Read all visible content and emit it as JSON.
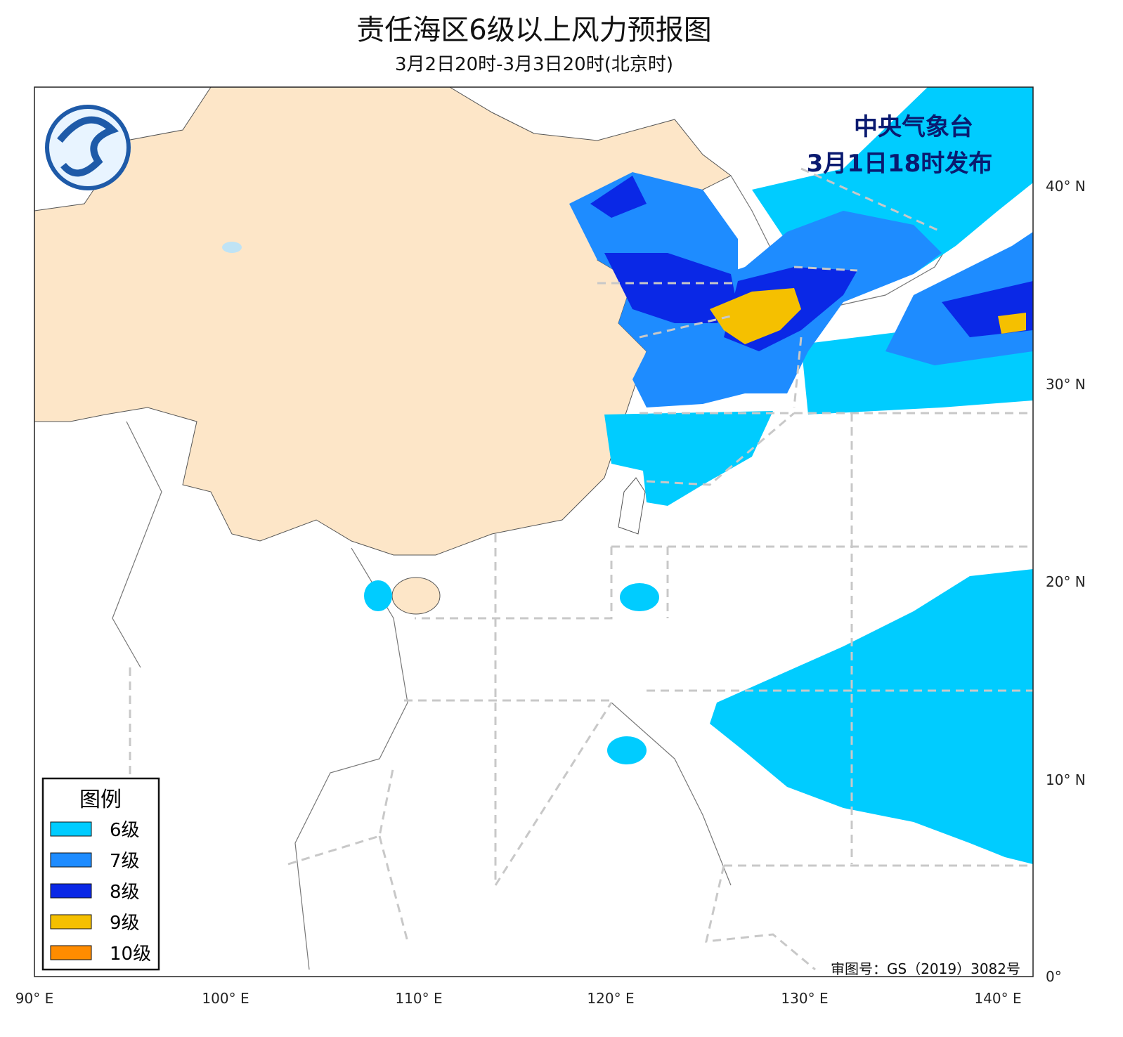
{
  "header": {
    "title": "责任海区6级以上风力预报图",
    "subtitle": "3月2日20时-3月3日20时(北京时)"
  },
  "publisher": {
    "agency": "中央气象台",
    "issued": "3月1日18时发布"
  },
  "legend": {
    "title": "图例",
    "items": [
      "6级",
      "7级",
      "8级",
      "9级",
      "10级"
    ]
  },
  "x_ticks": [
    "90° E",
    "100° E",
    "110° E",
    "120° E",
    "130° E",
    "140° E"
  ],
  "y_ticks": [
    "40° N",
    "30° N",
    "20° N",
    "10° N",
    "0°"
  ],
  "approval": "审图号：GS（2019）3082号"
}
